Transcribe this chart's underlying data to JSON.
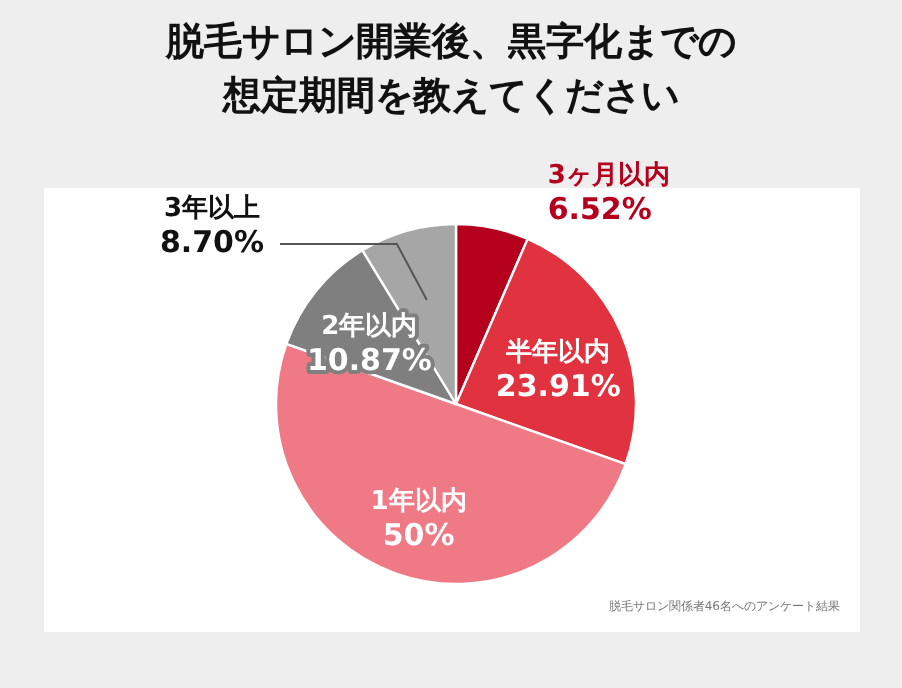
{
  "chart_data": {
    "type": "pie",
    "title": "脱毛サロン開業後、黒字化までの想定期間を教えてください",
    "categories": [
      "3ヶ月以内",
      "半年以内",
      "1年以内",
      "2年以内",
      "3年以上"
    ],
    "values": [
      6.52,
      23.91,
      50,
      10.87,
      8.7
    ],
    "colors": [
      "#b5001d",
      "#e0323f",
      "#ef7a85",
      "#7f7f7f",
      "#a6a6a6"
    ],
    "value_labels": [
      "6.52%",
      "23.91%",
      "50%",
      "10.87%",
      "8.70%"
    ],
    "annotations": [
      "脱毛サロン関係者46名へのアンケート結果"
    ]
  }
}
